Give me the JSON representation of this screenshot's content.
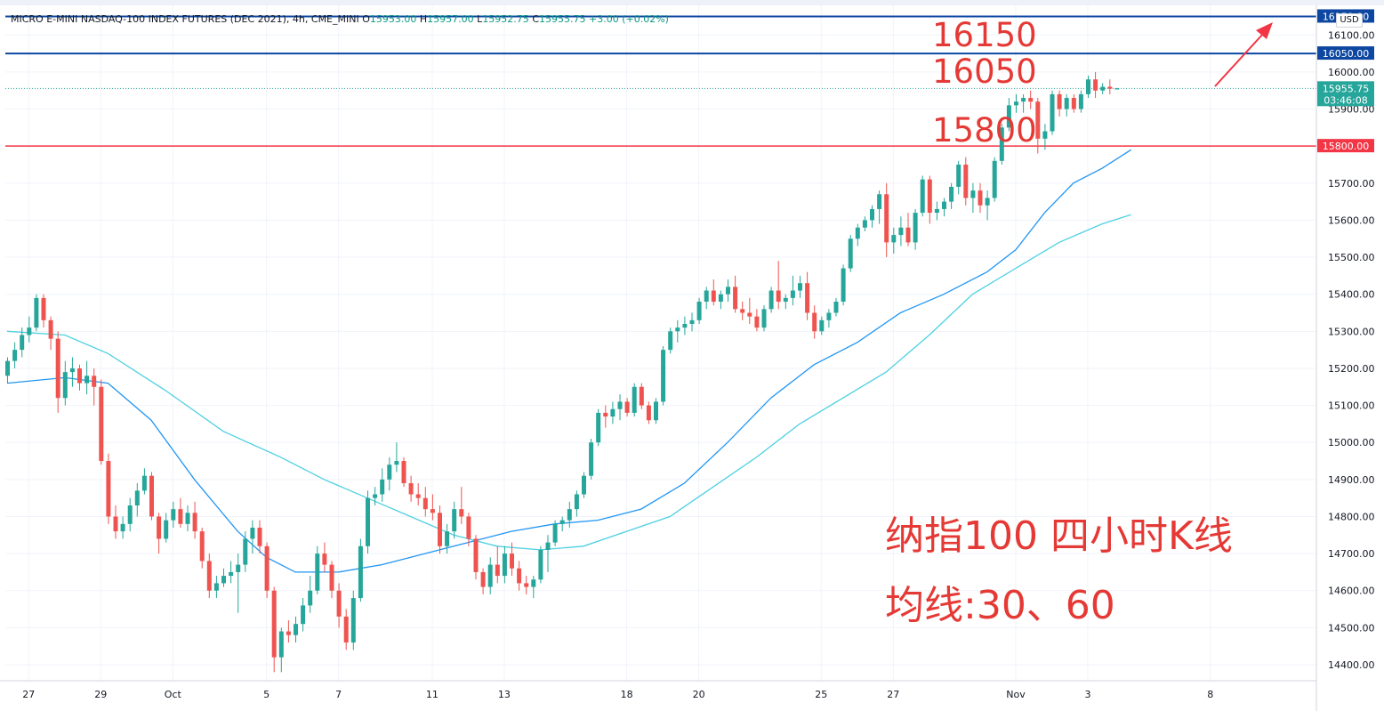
{
  "header": {
    "symbol": "MICRO E-MINI NASDAQ-100 INDEX FUTURES (DEC 2021), 4h, CME_MINI",
    "open_label": "O",
    "open": "15953.00",
    "high_label": "H",
    "high": "15957.00",
    "low_label": "L",
    "low": "15952.75",
    "close_label": "C",
    "close": "15955.75",
    "change": "+3.00 (+0.02%)"
  },
  "currency": "USD",
  "colors": {
    "up": "#26a69a",
    "down": "#ef5350",
    "ma30": "#2196f3",
    "ma60": "#4dd0e1",
    "blue_line": "#0d47a1",
    "red_line": "#f23645",
    "annotation": "#e53935",
    "arrow": "#f23645"
  },
  "annotations": {
    "level_16150": "16150",
    "level_16050": "16050",
    "level_15800": "15800",
    "title_line1": "纳指100 四小时K线",
    "title_line2": "均线:30、60"
  },
  "chart_data": {
    "type": "candlestick",
    "y_ticks": [
      "14400.00",
      "14500.00",
      "14600.00",
      "14700.00",
      "14800.00",
      "14900.00",
      "15000.00",
      "15100.00",
      "15200.00",
      "15300.00",
      "15400.00",
      "15500.00",
      "15600.00",
      "15700.00",
      "15900.00",
      "16000.00",
      "16100.00"
    ],
    "ylim": [
      14350,
      16170
    ],
    "x_ticks": [
      {
        "label": "27",
        "t": 3
      },
      {
        "label": "29",
        "t": 13
      },
      {
        "label": "Oct",
        "t": 23
      },
      {
        "label": "5",
        "t": 36
      },
      {
        "label": "7",
        "t": 46
      },
      {
        "label": "11",
        "t": 59
      },
      {
        "label": "13",
        "t": 69
      },
      {
        "label": "18",
        "t": 86
      },
      {
        "label": "20",
        "t": 96
      },
      {
        "label": "25",
        "t": 113
      },
      {
        "label": "27",
        "t": 123
      },
      {
        "label": "Nov",
        "t": 140
      },
      {
        "label": "3",
        "t": 150
      },
      {
        "label": "8",
        "t": 167
      }
    ],
    "price_labels": [
      {
        "label": "16150.00",
        "value": 16150,
        "kind": "blue"
      },
      {
        "label": "16050.00",
        "value": 16050,
        "kind": "blue"
      },
      {
        "label": "15955.75",
        "value": 15955.75,
        "kind": "current",
        "countdown": "03:46:08"
      },
      {
        "label": "15800.00",
        "value": 15800,
        "kind": "red"
      }
    ],
    "horizontal_lines": [
      {
        "value": 16150,
        "color": "#0d47a1"
      },
      {
        "value": 16050,
        "color": "#0d47a1"
      },
      {
        "value": 15800,
        "color": "#f23645"
      }
    ],
    "candles": [
      [
        15180,
        15230,
        15160,
        15220
      ],
      [
        15220,
        15270,
        15200,
        15250
      ],
      [
        15250,
        15310,
        15230,
        15290
      ],
      [
        15290,
        15340,
        15270,
        15310
      ],
      [
        15310,
        15400,
        15300,
        15390
      ],
      [
        15390,
        15400,
        15310,
        15330
      ],
      [
        15330,
        15340,
        15250,
        15280
      ],
      [
        15280,
        15300,
        15080,
        15120
      ],
      [
        15120,
        15220,
        15100,
        15190
      ],
      [
        15190,
        15230,
        15150,
        15200
      ],
      [
        15200,
        15210,
        15140,
        15160
      ],
      [
        15160,
        15220,
        15130,
        15180
      ],
      [
        15180,
        15200,
        15100,
        15150
      ],
      [
        15150,
        15170,
        14940,
        14950
      ],
      [
        14950,
        14970,
        14780,
        14800
      ],
      [
        14800,
        14830,
        14740,
        14760
      ],
      [
        14760,
        14800,
        14740,
        14780
      ],
      [
        14780,
        14850,
        14760,
        14830
      ],
      [
        14830,
        14890,
        14800,
        14870
      ],
      [
        14870,
        14930,
        14860,
        14910
      ],
      [
        14910,
        14920,
        14790,
        14800
      ],
      [
        14800,
        14810,
        14700,
        14740
      ],
      [
        14740,
        14810,
        14730,
        14790
      ],
      [
        14790,
        14840,
        14770,
        14820
      ],
      [
        14820,
        14850,
        14770,
        14780
      ],
      [
        14780,
        14830,
        14760,
        14810
      ],
      [
        14810,
        14840,
        14740,
        14760
      ],
      [
        14760,
        14770,
        14660,
        14680
      ],
      [
        14680,
        14700,
        14580,
        14600
      ],
      [
        14600,
        14640,
        14580,
        14620
      ],
      [
        14620,
        14660,
        14610,
        14640
      ],
      [
        14640,
        14680,
        14620,
        14650
      ],
      [
        14650,
        14700,
        14540,
        14670
      ],
      [
        14670,
        14760,
        14650,
        14740
      ],
      [
        14740,
        14790,
        14700,
        14770
      ],
      [
        14770,
        14790,
        14700,
        14720
      ],
      [
        14720,
        14730,
        14580,
        14600
      ],
      [
        14600,
        14610,
        14380,
        14420
      ],
      [
        14420,
        14500,
        14380,
        14490
      ],
      [
        14490,
        14520,
        14460,
        14480
      ],
      [
        14480,
        14530,
        14460,
        14510
      ],
      [
        14510,
        14580,
        14490,
        14560
      ],
      [
        14560,
        14640,
        14540,
        14600
      ],
      [
        14600,
        14720,
        14590,
        14700
      ],
      [
        14700,
        14730,
        14650,
        14670
      ],
      [
        14670,
        14680,
        14580,
        14600
      ],
      [
        14600,
        14620,
        14500,
        14530
      ],
      [
        14530,
        14550,
        14440,
        14460
      ],
      [
        14460,
        14600,
        14440,
        14580
      ],
      [
        14580,
        14740,
        14570,
        14720
      ],
      [
        14720,
        14870,
        14700,
        14850
      ],
      [
        14850,
        14880,
        14830,
        14860
      ],
      [
        14860,
        14930,
        14840,
        14900
      ],
      [
        14900,
        14960,
        14870,
        14940
      ],
      [
        14940,
        15000,
        14920,
        14950
      ],
      [
        14950,
        14960,
        14880,
        14890
      ],
      [
        14890,
        14910,
        14840,
        14860
      ],
      [
        14860,
        14890,
        14830,
        14850
      ],
      [
        14850,
        14880,
        14800,
        14820
      ],
      [
        14820,
        14860,
        14790,
        14810
      ],
      [
        14810,
        14830,
        14700,
        14720
      ],
      [
        14720,
        14780,
        14700,
        14760
      ],
      [
        14760,
        14840,
        14740,
        14820
      ],
      [
        14820,
        14880,
        14780,
        14800
      ],
      [
        14800,
        14810,
        14720,
        14740
      ],
      [
        14740,
        14750,
        14630,
        14650
      ],
      [
        14650,
        14660,
        14590,
        14610
      ],
      [
        14610,
        14690,
        14590,
        14670
      ],
      [
        14670,
        14720,
        14620,
        14640
      ],
      [
        14640,
        14720,
        14620,
        14700
      ],
      [
        14700,
        14730,
        14640,
        14660
      ],
      [
        14660,
        14680,
        14600,
        14620
      ],
      [
        14620,
        14640,
        14590,
        14610
      ],
      [
        14610,
        14640,
        14580,
        14630
      ],
      [
        14630,
        14720,
        14620,
        14710
      ],
      [
        14710,
        14750,
        14650,
        14730
      ],
      [
        14730,
        14790,
        14720,
        14780
      ],
      [
        14780,
        14800,
        14760,
        14790
      ],
      [
        14790,
        14840,
        14770,
        14820
      ],
      [
        14820,
        14870,
        14800,
        14860
      ],
      [
        14860,
        14920,
        14850,
        14910
      ],
      [
        14910,
        15010,
        14900,
        15000
      ],
      [
        15000,
        15090,
        14990,
        15080
      ],
      [
        15080,
        15100,
        15040,
        15070
      ],
      [
        15070,
        15110,
        15050,
        15090
      ],
      [
        15090,
        15130,
        15060,
        15110
      ],
      [
        15110,
        15120,
        15070,
        15080
      ],
      [
        15080,
        15160,
        15070,
        15150
      ],
      [
        15150,
        15160,
        15090,
        15100
      ],
      [
        15100,
        15110,
        15050,
        15060
      ],
      [
        15060,
        15120,
        15050,
        15110
      ],
      [
        15110,
        15260,
        15100,
        15250
      ],
      [
        15250,
        15310,
        15240,
        15300
      ],
      [
        15300,
        15330,
        15270,
        15310
      ],
      [
        15310,
        15340,
        15290,
        15320
      ],
      [
        15320,
        15350,
        15300,
        15330
      ],
      [
        15330,
        15390,
        15320,
        15380
      ],
      [
        15380,
        15420,
        15360,
        15410
      ],
      [
        15410,
        15440,
        15370,
        15380
      ],
      [
        15380,
        15410,
        15360,
        15400
      ],
      [
        15400,
        15440,
        15380,
        15420
      ],
      [
        15420,
        15450,
        15350,
        15360
      ],
      [
        15360,
        15380,
        15330,
        15350
      ],
      [
        15350,
        15390,
        15320,
        15340
      ],
      [
        15340,
        15360,
        15300,
        15310
      ],
      [
        15310,
        15370,
        15300,
        15360
      ],
      [
        15360,
        15420,
        15350,
        15410
      ],
      [
        15410,
        15490,
        15360,
        15380
      ],
      [
        15380,
        15400,
        15360,
        15390
      ],
      [
        15390,
        15450,
        15370,
        15410
      ],
      [
        15410,
        15450,
        15390,
        15430
      ],
      [
        15430,
        15460,
        15330,
        15350
      ],
      [
        15350,
        15370,
        15280,
        15300
      ],
      [
        15300,
        15340,
        15290,
        15330
      ],
      [
        15330,
        15360,
        15310,
        15350
      ],
      [
        15350,
        15390,
        15340,
        15380
      ],
      [
        15380,
        15480,
        15370,
        15470
      ],
      [
        15470,
        15560,
        15460,
        15550
      ],
      [
        15550,
        15590,
        15530,
        15580
      ],
      [
        15580,
        15610,
        15570,
        15600
      ],
      [
        15600,
        15640,
        15580,
        15630
      ],
      [
        15630,
        15680,
        15590,
        15670
      ],
      [
        15670,
        15700,
        15500,
        15540
      ],
      [
        15540,
        15580,
        15510,
        15560
      ],
      [
        15560,
        15610,
        15530,
        15580
      ],
      [
        15580,
        15620,
        15530,
        15540
      ],
      [
        15540,
        15630,
        15520,
        15620
      ],
      [
        15620,
        15720,
        15610,
        15710
      ],
      [
        15710,
        15720,
        15590,
        15620
      ],
      [
        15620,
        15650,
        15600,
        15630
      ],
      [
        15630,
        15660,
        15610,
        15650
      ],
      [
        15650,
        15700,
        15630,
        15690
      ],
      [
        15690,
        15760,
        15670,
        15750
      ],
      [
        15750,
        15770,
        15640,
        15660
      ],
      [
        15660,
        15700,
        15620,
        15680
      ],
      [
        15680,
        15700,
        15620,
        15640
      ],
      [
        15640,
        15680,
        15600,
        15660
      ],
      [
        15660,
        15770,
        15650,
        15760
      ],
      [
        15760,
        15860,
        15750,
        15850
      ],
      [
        15850,
        15930,
        15840,
        15910
      ],
      [
        15910,
        15940,
        15890,
        15920
      ],
      [
        15920,
        15940,
        15890,
        15930
      ],
      [
        15930,
        15950,
        15900,
        15920
      ],
      [
        15920,
        15930,
        15780,
        15820
      ],
      [
        15820,
        15860,
        15790,
        15840
      ],
      [
        15840,
        15950,
        15830,
        15940
      ],
      [
        15940,
        15950,
        15880,
        15900
      ],
      [
        15900,
        15940,
        15880,
        15930
      ],
      [
        15930,
        15940,
        15890,
        15900
      ],
      [
        15900,
        15950,
        15890,
        15940
      ],
      [
        15940,
        15990,
        15930,
        15980
      ],
      [
        15980,
        16000,
        15930,
        15950
      ],
      [
        15950,
        15970,
        15940,
        15960
      ],
      [
        15960,
        15980,
        15940,
        15955
      ],
      [
        15953,
        15957,
        15952.75,
        15955.75
      ]
    ],
    "series": [
      {
        "name": "MA30",
        "color": "#2196f3",
        "points": [
          [
            0,
            15160
          ],
          [
            8,
            15175
          ],
          [
            14,
            15160
          ],
          [
            20,
            15060
          ],
          [
            26,
            14900
          ],
          [
            32,
            14760
          ],
          [
            36,
            14690
          ],
          [
            40,
            14650
          ],
          [
            46,
            14650
          ],
          [
            52,
            14670
          ],
          [
            58,
            14700
          ],
          [
            64,
            14730
          ],
          [
            70,
            14760
          ],
          [
            76,
            14780
          ],
          [
            82,
            14790
          ],
          [
            88,
            14820
          ],
          [
            94,
            14890
          ],
          [
            100,
            15000
          ],
          [
            106,
            15120
          ],
          [
            112,
            15210
          ],
          [
            118,
            15270
          ],
          [
            124,
            15350
          ],
          [
            130,
            15400
          ],
          [
            136,
            15460
          ],
          [
            140,
            15520
          ],
          [
            144,
            15620
          ],
          [
            148,
            15700
          ],
          [
            152,
            15740
          ],
          [
            156,
            15790
          ]
        ]
      },
      {
        "name": "MA60",
        "color": "#4dd0e1",
        "points": [
          [
            0,
            15300
          ],
          [
            8,
            15290
          ],
          [
            14,
            15240
          ],
          [
            22,
            15140
          ],
          [
            30,
            15030
          ],
          [
            38,
            14960
          ],
          [
            44,
            14900
          ],
          [
            50,
            14850
          ],
          [
            56,
            14800
          ],
          [
            62,
            14750
          ],
          [
            68,
            14720
          ],
          [
            74,
            14710
          ],
          [
            80,
            14720
          ],
          [
            86,
            14760
          ],
          [
            92,
            14800
          ],
          [
            98,
            14880
          ],
          [
            104,
            14960
          ],
          [
            110,
            15050
          ],
          [
            116,
            15120
          ],
          [
            122,
            15190
          ],
          [
            128,
            15290
          ],
          [
            134,
            15400
          ],
          [
            140,
            15470
          ],
          [
            146,
            15540
          ],
          [
            152,
            15590
          ],
          [
            156,
            15615
          ]
        ]
      }
    ]
  }
}
